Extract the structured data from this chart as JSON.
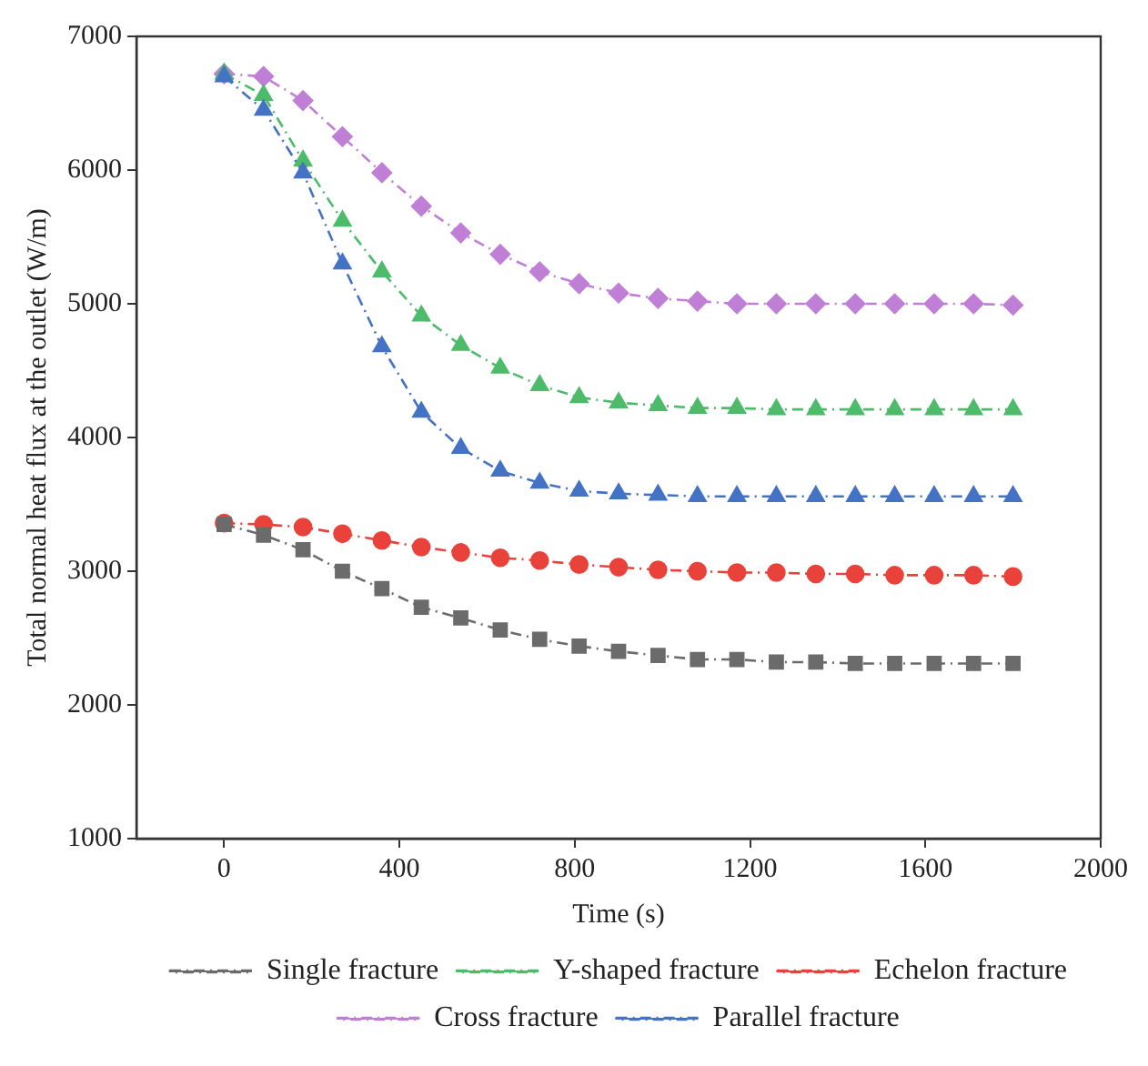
{
  "chart_data": {
    "type": "line",
    "xlabel": "Time (s)",
    "ylabel": "Total normal heat flux at the outlet (W/m)",
    "x": [
      0,
      90,
      180,
      270,
      360,
      450,
      540,
      630,
      720,
      810,
      900,
      990,
      1080,
      1170,
      1260,
      1350,
      1440,
      1530,
      1620,
      1710,
      1800
    ],
    "series": [
      {
        "name": "Single fracture",
        "color": "#6b6b6b",
        "marker": "square",
        "values": [
          3350,
          3270,
          3160,
          3000,
          2870,
          2730,
          2650,
          2560,
          2490,
          2440,
          2400,
          2370,
          2340,
          2340,
          2320,
          2320,
          2310,
          2310,
          2310,
          2310,
          2310
        ]
      },
      {
        "name": "Echelon fracture",
        "color": "#e8423b",
        "marker": "circle",
        "values": [
          3360,
          3350,
          3330,
          3280,
          3230,
          3180,
          3140,
          3100,
          3080,
          3050,
          3030,
          3010,
          3000,
          2990,
          2990,
          2980,
          2980,
          2970,
          2970,
          2970,
          2960
        ]
      },
      {
        "name": "Parallel fracture",
        "color": "#4472c4",
        "marker": "triangle",
        "values": [
          6700,
          6450,
          5980,
          5300,
          4680,
          4190,
          3920,
          3750,
          3660,
          3600,
          3580,
          3570,
          3560,
          3560,
          3560,
          3560,
          3560,
          3560,
          3560,
          3560,
          3560
        ]
      },
      {
        "name": "Y-shaped fracture",
        "color": "#4dbb6a",
        "marker": "triangle",
        "values": [
          6720,
          6560,
          6070,
          5620,
          5240,
          4910,
          4690,
          4520,
          4390,
          4300,
          4260,
          4240,
          4220,
          4220,
          4210,
          4210,
          4210,
          4210,
          4210,
          4210,
          4210
        ]
      },
      {
        "name": "Cross fracture",
        "color": "#c07fd6",
        "marker": "diamond",
        "values": [
          6720,
          6700,
          6520,
          6250,
          5980,
          5730,
          5530,
          5370,
          5240,
          5150,
          5080,
          5040,
          5020,
          5000,
          5000,
          5000,
          5000,
          5000,
          5000,
          5000,
          4990
        ]
      }
    ],
    "xlim": [
      -200,
      2000
    ],
    "xticks": [
      0,
      400,
      800,
      1200,
      1600,
      2000
    ],
    "ylim": [
      1000,
      7000
    ],
    "yticks": [
      1000,
      2000,
      3000,
      4000,
      5000,
      6000,
      7000
    ],
    "grid": false,
    "legend": "bottom",
    "line_style": "dashed"
  }
}
